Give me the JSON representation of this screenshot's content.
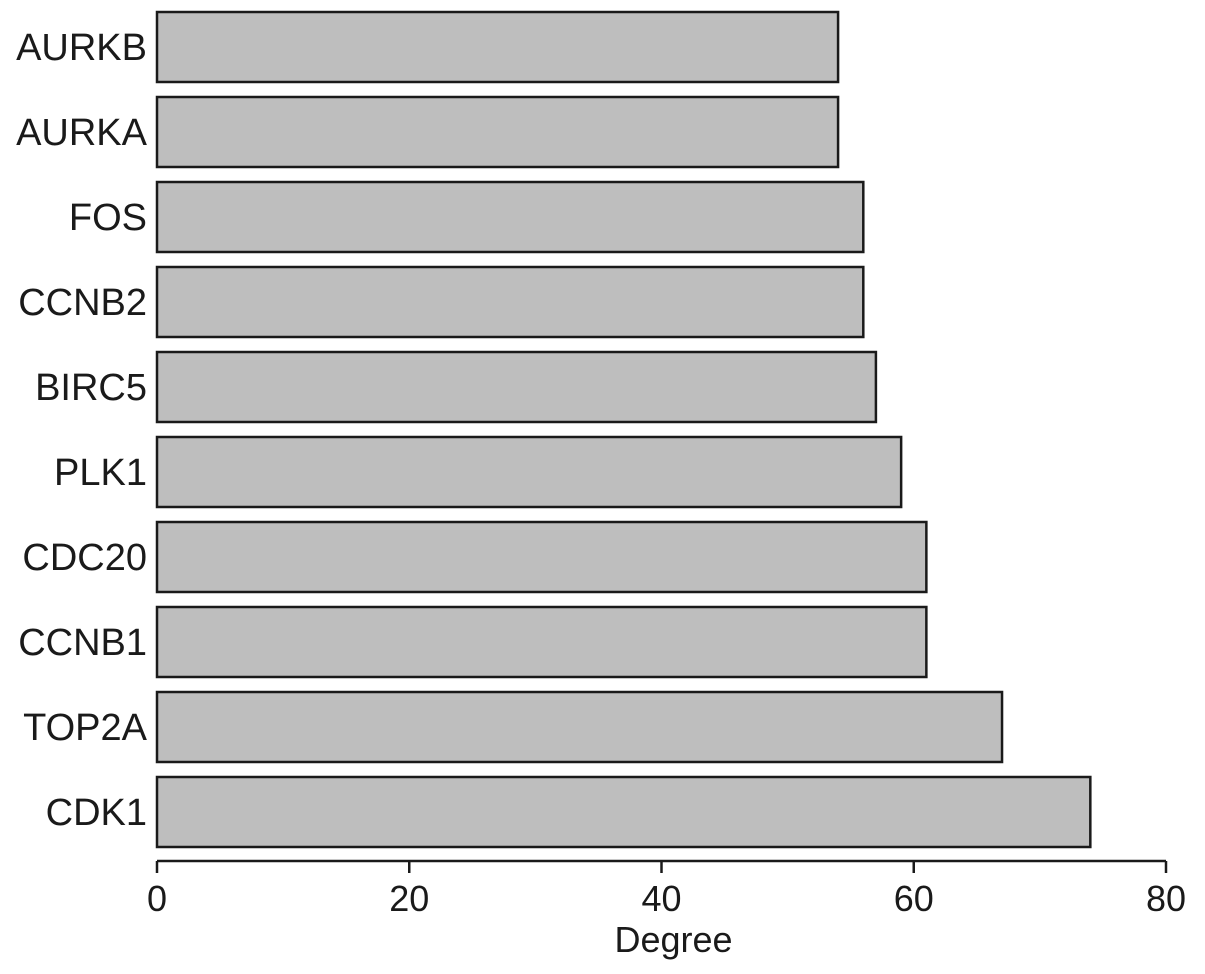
{
  "chart_data": {
    "type": "bar",
    "orientation": "horizontal",
    "categories": [
      "AURKB",
      "AURKA",
      "FOS",
      "CCNB2",
      "BIRC5",
      "PLK1",
      "CDC20",
      "CCNB1",
      "TOP2A",
      "CDK1"
    ],
    "values": [
      54,
      54,
      56,
      56,
      57,
      59,
      61,
      61,
      67,
      74
    ],
    "title": "",
    "xlabel": "Degree",
    "ylabel": "",
    "xlim": [
      0,
      80
    ],
    "xticks": [
      0,
      20,
      40,
      60,
      80
    ],
    "xtick_labels": [
      "0",
      "20",
      "40",
      "60",
      "80"
    ],
    "grid": false,
    "legend": "none",
    "colors": {
      "bar_fill": "#bebebe",
      "bar_stroke": "#1a1a1a",
      "text": "#1a1a1a",
      "axis": "#1a1a1a"
    }
  }
}
